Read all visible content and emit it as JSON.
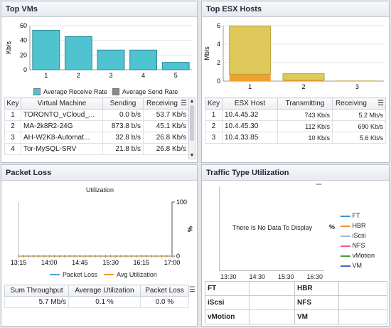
{
  "top_vms": {
    "title": "Top VMs",
    "y_label": "Kb/s",
    "legend": [
      "Average Receive Rate",
      "Average Send Rate"
    ],
    "colors": {
      "receive": "#4fc3cf",
      "send": "#8a8a8a"
    },
    "columns": [
      "Key",
      "Virtual Machine",
      "Sending",
      "Receiving"
    ],
    "rows": [
      [
        "1",
        "TORONTO_vCloud_...",
        "0.0 b/s",
        "53.7 Kb/s"
      ],
      [
        "2",
        "MA-2k8R2-24G",
        "873.8 b/s",
        "45.1 Kb/s"
      ],
      [
        "3",
        "AH-W2K8-Automat...",
        "32.8 b/s",
        "26.8 Kb/s"
      ],
      [
        "4",
        "Tor-MySQL-SRV",
        "21.8 b/s",
        "26.8 Kb/s"
      ]
    ]
  },
  "top_esx": {
    "title": "Top ESX Hosts",
    "y_label": "Mb/s",
    "colors": {
      "receive": "#dfc95a",
      "transmit": "#f0a030"
    },
    "columns": [
      "Key",
      "ESX Host",
      "Transmitting",
      "Receiving"
    ],
    "rows": [
      [
        "1",
        "10.4.45.32",
        "743 Kb/s",
        "5.2 Mb/s"
      ],
      [
        "2",
        "10.4.45.30",
        "112 Kb/s",
        "690 Kb/s"
      ],
      [
        "3",
        "10.4.33.85",
        "10 Kb/s",
        "5.6 Kb/s"
      ]
    ]
  },
  "packet_loss": {
    "title": "Packet Loss",
    "chart_title": "Utilization",
    "y_right_label": "%",
    "legend": [
      "Packet Loss",
      "Avg Utilization"
    ],
    "colors": {
      "packet_loss": "#4aa3df",
      "avg_util": "#f0a030"
    },
    "summary_columns": [
      "Sum Throughput",
      "Average Utilization",
      "Packet Loss"
    ],
    "summary_values": [
      "5.7 Mb/s",
      "0.1 %",
      "0.0 %"
    ]
  },
  "traffic": {
    "title": "Traffic Type Utilization",
    "no_data": "There Is No Data To Display",
    "y_label": "%",
    "x_ticks": [
      "13:30",
      "14:30",
      "15:30",
      "16:30"
    ],
    "legend": [
      {
        "name": "FT",
        "color": "#3a8fd9"
      },
      {
        "name": "HBR",
        "color": "#f0902a"
      },
      {
        "name": "iScsi",
        "color": "#9ab8e0"
      },
      {
        "name": "NFS",
        "color": "#f05a8c"
      },
      {
        "name": "vMotion",
        "color": "#4e9a3a"
      },
      {
        "name": "VM",
        "color": "#5a5acf"
      }
    ],
    "grid_labels": [
      "FT",
      "HBR",
      "iScsi",
      "NFS",
      "vMotion",
      "VM"
    ]
  },
  "chart_data": [
    {
      "type": "bar",
      "categories": [
        "1",
        "2",
        "3",
        "4",
        "5"
      ],
      "series": [
        {
          "name": "Average Receive Rate",
          "values": [
            53.7,
            45.1,
            26.8,
            26.8,
            10
          ]
        },
        {
          "name": "Average Send Rate",
          "values": [
            0,
            0.9,
            0,
            0,
            0
          ]
        }
      ],
      "ylabel": "Kb/s",
      "ylim": [
        0,
        60
      ],
      "yticks": [
        0,
        20,
        40,
        60
      ]
    },
    {
      "type": "bar",
      "categories": [
        "1",
        "2",
        "3"
      ],
      "series": [
        {
          "name": "Transmitting",
          "values": [
            0.743,
            0.112,
            0.01
          ]
        },
        {
          "name": "Receiving",
          "values": [
            5.2,
            0.69,
            0.0056
          ]
        }
      ],
      "ylabel": "Mb/s",
      "ylim": [
        0,
        6
      ],
      "yticks": [
        0,
        2,
        4,
        6
      ]
    },
    {
      "type": "line",
      "title": "Utilization",
      "x": [
        "13:15",
        "14:00",
        "14:45",
        "15:30",
        "16:15",
        "17:00"
      ],
      "series": [
        {
          "name": "Packet Loss",
          "values": [
            0,
            0,
            0,
            0,
            0,
            0
          ]
        },
        {
          "name": "Avg Utilization",
          "values": [
            0.1,
            0.1,
            0.1,
            0.1,
            0.1,
            0.1
          ]
        }
      ],
      "y_right_label": "%",
      "ylim": [
        0,
        100
      ],
      "yticks": [
        0,
        100
      ]
    }
  ]
}
